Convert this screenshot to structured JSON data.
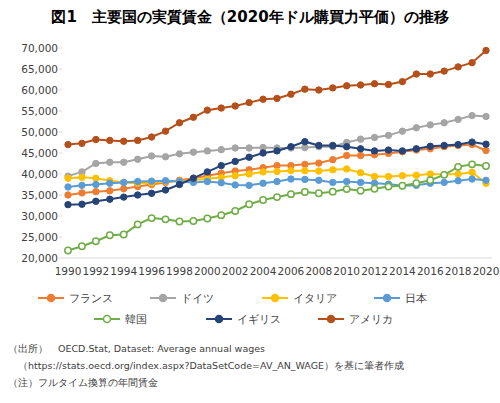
{
  "chart_data": {
    "type": "line",
    "title": "図1　主要国の実質賃金（2020年ドル購買力平価）の推移",
    "annotations": [
      "（出所）　OECD.Stat, Dataset: Average annual wages",
      "（https://stats.oecd.org/index.aspx?DataSetCode=AV_AN_WAGE）を基に筆者作成",
      "（注）フルタイム換算の年間賃金"
    ],
    "categories": [
      "1990",
      null,
      "1992",
      null,
      "1994",
      null,
      "1996",
      null,
      "1998",
      null,
      "2000",
      null,
      "2002",
      null,
      "2004",
      null,
      "2006",
      null,
      "2008",
      null,
      "2010",
      null,
      "2012",
      null,
      "2014",
      null,
      "2016",
      null,
      "2018",
      null,
      "2020"
    ],
    "ylim": [
      20000,
      70000
    ],
    "yticks": [
      {
        "value": 20000,
        "label": "20,000"
      },
      {
        "value": 25000,
        "label": "25,000"
      },
      {
        "value": 30000,
        "label": "30,000"
      },
      {
        "value": 35000,
        "label": "35,000"
      },
      {
        "value": 40000,
        "label": "40,000"
      },
      {
        "value": 45000,
        "label": "45,000"
      },
      {
        "value": 50000,
        "label": "50,000"
      },
      {
        "value": 55000,
        "label": "55,000"
      },
      {
        "value": 60000,
        "label": "60,000"
      },
      {
        "value": 65000,
        "label": "65,000"
      },
      {
        "value": 70000,
        "label": "70,000"
      }
    ],
    "grid": false,
    "legend": "bottom",
    "series": [
      {
        "name": "フランス",
        "color": "#ed7d31",
        "marker": "circle",
        "values": [
          35000,
          35500,
          35800,
          36000,
          36500,
          37000,
          37500,
          38000,
          38500,
          39000,
          39600,
          40200,
          40700,
          41000,
          41500,
          42000,
          42000,
          42300,
          42600,
          43400,
          44400,
          44400,
          44600,
          44900,
          45300,
          45700,
          46000,
          46500,
          46800,
          47000,
          45600
        ]
      },
      {
        "name": "ドイツ",
        "color": "#a5a5a5",
        "marker": "circle",
        "values": [
          39500,
          40500,
          42500,
          42800,
          42800,
          43500,
          44300,
          44100,
          44800,
          45200,
          45500,
          45800,
          46200,
          46200,
          46300,
          46200,
          46200,
          46300,
          46500,
          46500,
          47500,
          48300,
          48700,
          49200,
          50200,
          51000,
          51700,
          52200,
          53000,
          53900,
          53700
        ]
      },
      {
        "name": "イタリア",
        "color": "#ffc000",
        "marker": "circle",
        "values": [
          39000,
          39200,
          39000,
          38400,
          38000,
          37800,
          37900,
          38300,
          38300,
          38600,
          38800,
          39200,
          39600,
          40000,
          40500,
          40600,
          40800,
          40800,
          40700,
          41000,
          41200,
          40300,
          39400,
          39400,
          39600,
          39700,
          40000,
          39900,
          40000,
          40400,
          37800
        ]
      },
      {
        "name": "日本",
        "color": "#5b9bd5",
        "marker": "circle",
        "values": [
          36900,
          37300,
          37500,
          37800,
          38000,
          38200,
          38300,
          38400,
          38200,
          38000,
          38200,
          37900,
          37400,
          37300,
          37800,
          38200,
          38800,
          38700,
          38500,
          38000,
          38200,
          38000,
          37800,
          37600,
          37200,
          37300,
          37800,
          38000,
          38400,
          38800,
          38500
        ]
      },
      {
        "name": "韓国",
        "color": "#70ad47",
        "marker": "open-circle",
        "values": [
          21800,
          22800,
          24000,
          25400,
          25600,
          28000,
          29500,
          29200,
          28700,
          28800,
          29400,
          30200,
          31200,
          32800,
          33800,
          34500,
          35200,
          35700,
          35400,
          35800,
          36400,
          36000,
          36500,
          37000,
          37200,
          37800,
          38500,
          39800,
          41700,
          42300,
          41900
        ]
      },
      {
        "name": "イギリス",
        "color": "#264478",
        "marker": "circle",
        "values": [
          32700,
          32800,
          33500,
          34000,
          34500,
          35000,
          35400,
          36200,
          37500,
          39000,
          40500,
          42000,
          43000,
          44000,
          45000,
          45500,
          46500,
          47700,
          46800,
          46800,
          46500,
          46000,
          45500,
          45700,
          45500,
          46000,
          46600,
          46800,
          47000,
          47600,
          47100
        ]
      },
      {
        "name": "アメリカ",
        "color": "#b5501a",
        "marker": "circle",
        "values": [
          47000,
          47300,
          48200,
          48000,
          47800,
          48000,
          48800,
          50200,
          52200,
          53500,
          55200,
          55700,
          56200,
          57000,
          57800,
          58000,
          59000,
          60200,
          60000,
          60500,
          61000,
          61200,
          61500,
          61300,
          62000,
          63800,
          63800,
          64500,
          65500,
          66500,
          69400
        ]
      }
    ]
  }
}
